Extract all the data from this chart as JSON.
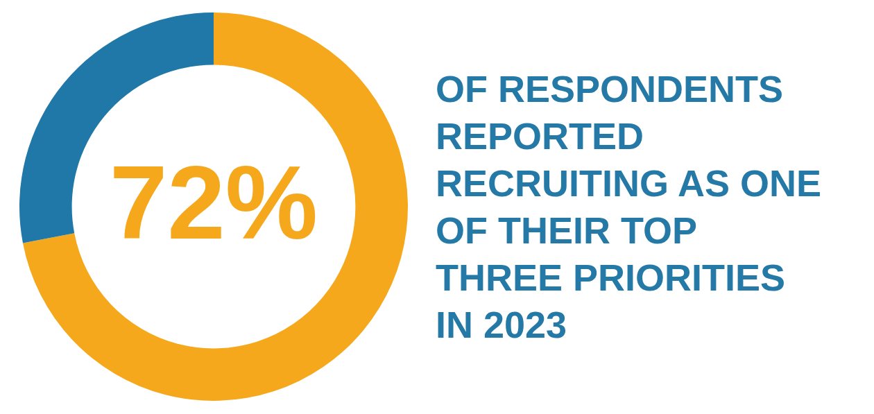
{
  "chart_data": {
    "type": "donut",
    "categories": [
      null,
      null
    ],
    "values": [
      72,
      28
    ],
    "colors": [
      "#f5a81c",
      "#1f78a8"
    ],
    "value_labels": [
      "72%",
      null
    ],
    "legend": false,
    "annotations": [
      "OF RESPONDENTS REPORTED RECRUITING AS ONE OF THEIR TOP THREE PRIORITIES IN 2023"
    ]
  }
}
